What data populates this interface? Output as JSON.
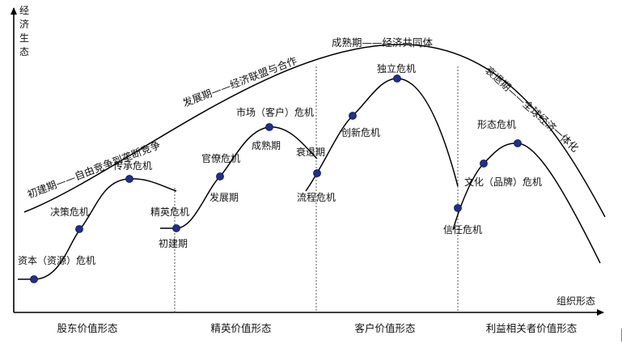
{
  "axes": {
    "y_label": [
      "经",
      "济",
      "生",
      "态"
    ],
    "x_label": "组织形态"
  },
  "bottom_labels": [
    "股东价值形态",
    "精英价值形态",
    "客户价值形态",
    "利益相关者价值形态"
  ],
  "phases": {
    "start": "初建期——自由竞争到垄断竞争",
    "growth": "发展期——经济联盟与合作",
    "mature": "成熟期——经济共同体",
    "decline": "衰退期——全球经济一体化"
  },
  "stage1": {
    "capital_crisis": "资本（资源）危机",
    "decision_crisis": "决策危机",
    "succession_crisis": "传承危机"
  },
  "stage2": {
    "elite_crisis": "精英危机",
    "start": "初建期",
    "bureaucracy_crisis": "官僚危机",
    "growth": "发展期",
    "market_crisis": "市场（客户）危机",
    "mature": "成熟期"
  },
  "stage3": {
    "decline": "衰退期",
    "process_crisis": "流程危机",
    "innovation_crisis": "创新危机",
    "independence_crisis": "独立危机"
  },
  "stage4": {
    "trust_crisis": "信任危机",
    "culture_crisis": "文化（品牌）危机",
    "form_crisis": "形态危机"
  },
  "colors": {
    "line": "#000000",
    "dot": "#1f2f8f",
    "divider": "#555555"
  }
}
